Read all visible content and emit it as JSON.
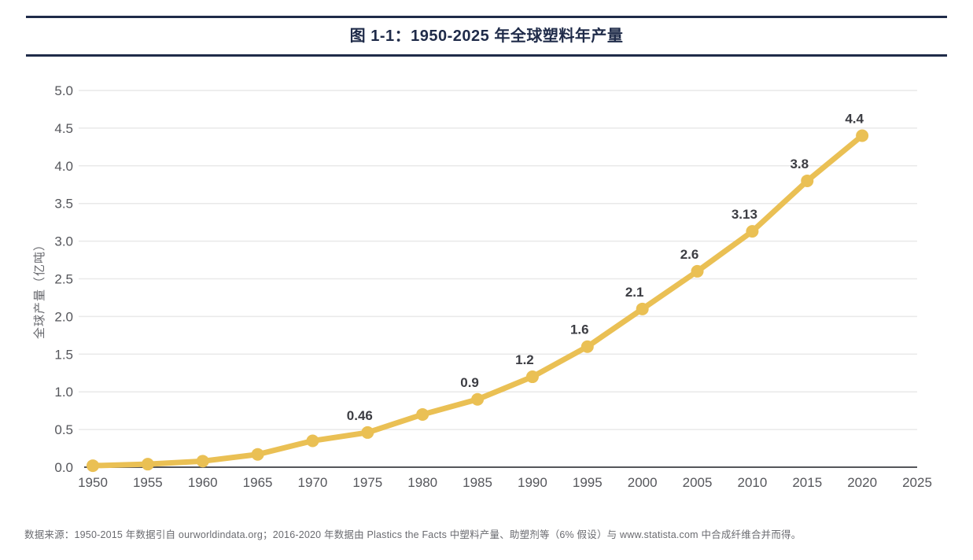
{
  "header": {
    "title": "图 1-1：1950-2025 年全球塑料年产量"
  },
  "chart_data": {
    "type": "line",
    "title": "图 1-1：1950-2025 年全球塑料年产量",
    "x": [
      1950,
      1955,
      1960,
      1965,
      1970,
      1975,
      1980,
      1985,
      1990,
      1995,
      2000,
      2005,
      2010,
      2015,
      2020
    ],
    "values": [
      0.02,
      0.04,
      0.08,
      0.17,
      0.35,
      0.46,
      0.7,
      0.9,
      1.2,
      1.6,
      2.1,
      2.6,
      3.13,
      3.8,
      4.4
    ],
    "point_labels": [
      "",
      "",
      "",
      "",
      "",
      "0.46",
      "",
      "0.9",
      "1.2",
      "1.6",
      "2.1",
      "2.6",
      "3.13",
      "3.8",
      "4.4"
    ],
    "xlabel": "",
    "ylabel": "全球产量（亿吨）",
    "x_ticks": [
      "1950",
      "1955",
      "1960",
      "1965",
      "1970",
      "1975",
      "1980",
      "1985",
      "1990",
      "1995",
      "2000",
      "2005",
      "2010",
      "2015",
      "2020",
      "2025"
    ],
    "y_ticks": [
      "0.0",
      "0.5",
      "1.0",
      "1.5",
      "2.0",
      "2.5",
      "3.0",
      "3.5",
      "4.0",
      "4.5",
      "5.0"
    ],
    "xlim": [
      1950,
      2025
    ],
    "ylim": [
      0,
      5.0
    ],
    "grid": "horizontal",
    "legend": "none",
    "marker": "circle",
    "line_color": "#EAC054"
  },
  "colors": {
    "accent_line": "#EAC054",
    "title_navy": "#1F2B49",
    "grid": "#E9E9E9",
    "axis": "#55565B",
    "tick_text": "#55565B",
    "data_label_text": "#3C3D43",
    "source_text": "#6A6B70"
  },
  "footer": {
    "source": "数据来源：1950-2015 年数据引自 ourworldindata.org；2016-2020 年数据由 Plastics the Facts 中塑料产量、助塑剂等（6% 假设）与 www.statista.com 中合成纤维合并而得。"
  }
}
